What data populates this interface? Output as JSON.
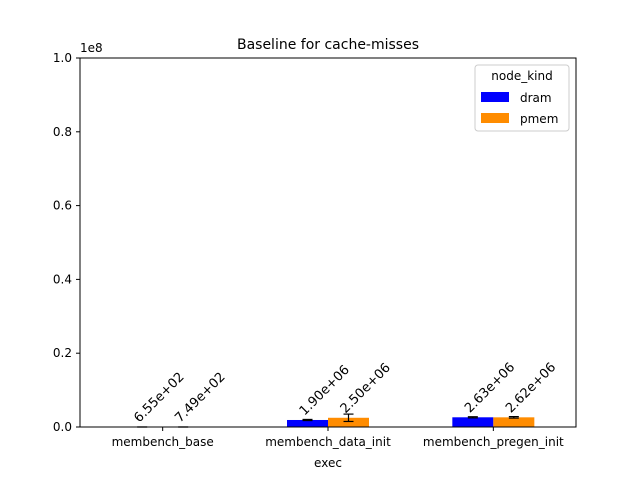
{
  "chart_data": {
    "type": "bar",
    "title": "Baseline for cache-misses",
    "xlabel": "exec",
    "ylabel": "",
    "y_scale_label": "1e8",
    "ylim": [
      0,
      100000000
    ],
    "yticks": [
      0,
      20000000,
      40000000,
      60000000,
      80000000,
      100000000
    ],
    "ytick_labels": [
      "0.0",
      "0.2",
      "0.4",
      "0.6",
      "0.8",
      "1.0"
    ],
    "categories": [
      "membench_base",
      "membench_data_init",
      "membench_pregen_init"
    ],
    "legend": {
      "title": "node_kind",
      "placement": "top-right"
    },
    "series": [
      {
        "name": "dram",
        "color": "#0000ff",
        "values": [
          655,
          1900000,
          2630000
        ],
        "errors": [
          0,
          150000,
          150000
        ],
        "labels": [
          "6.55e+02",
          "1.90e+06",
          "2.63e+06"
        ]
      },
      {
        "name": "pmem",
        "color": "#ff8c00",
        "values": [
          749,
          2500000,
          2620000
        ],
        "errors": [
          0,
          1000000,
          200000
        ],
        "labels": [
          "7.49e+02",
          "2.50e+06",
          "2.62e+06"
        ]
      }
    ]
  }
}
